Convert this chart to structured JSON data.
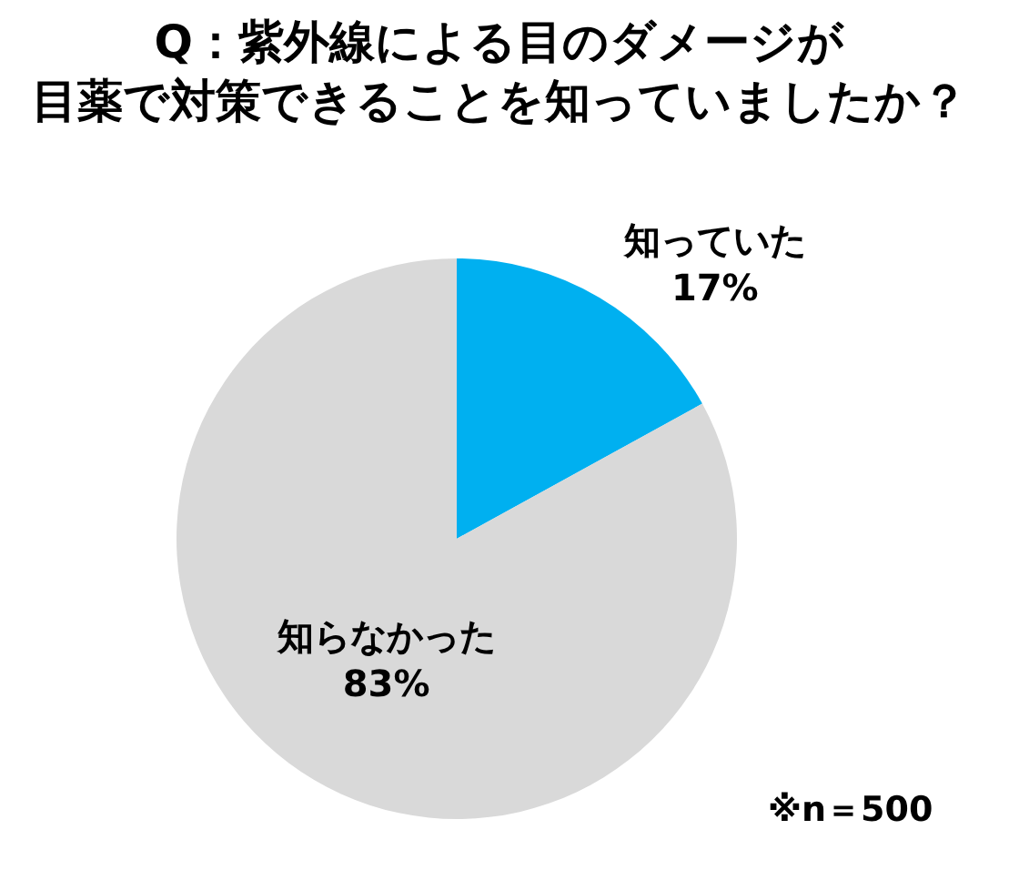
{
  "chart_data": {
    "type": "pie",
    "title": "Q：紫外線による目のダメージが目薬で対策できることを知っていましたか？",
    "categories": [
      "知っていた",
      "知らなかった"
    ],
    "values": [
      17,
      83
    ],
    "value_labels": [
      "17%",
      "83%"
    ],
    "colors": [
      "#00b0f0",
      "#d9d9d9"
    ],
    "annotations": [
      "※n＝500"
    ]
  }
}
